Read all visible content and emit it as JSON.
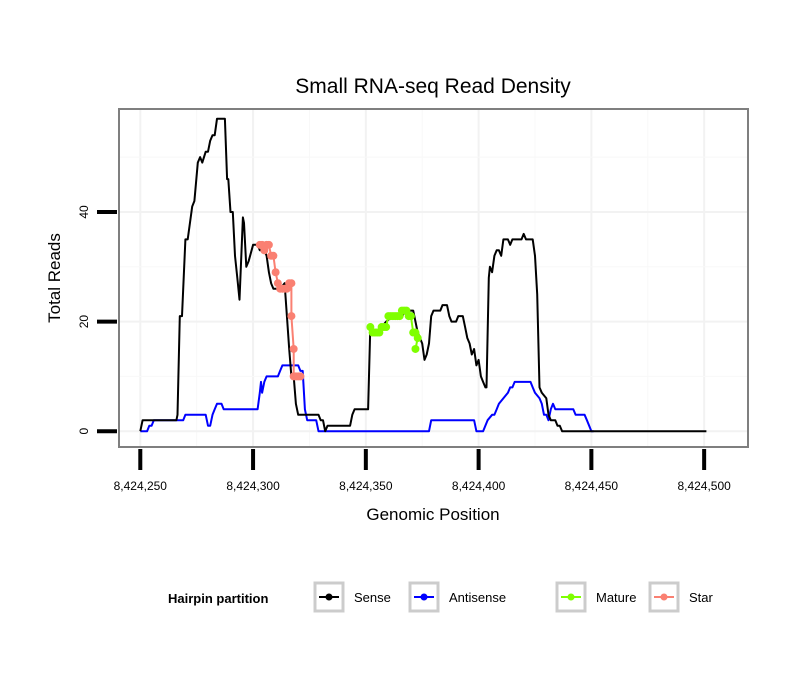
{
  "chart_data": {
    "type": "line",
    "title": "Small RNA-seq Read Density",
    "xlabel": "Genomic Position",
    "ylabel": "Total Reads",
    "xlim": [
      8424241,
      8424519
    ],
    "ylim": [
      -2.7,
      58.6
    ],
    "xticks": [
      8424250,
      8424300,
      8424350,
      8424400,
      8424450,
      8424500
    ],
    "xtick_labels": [
      "8,424,250",
      "8,424,300",
      "8,424,350",
      "8,424,400",
      "8,424,450",
      "8,424,500"
    ],
    "yticks": [
      0,
      20,
      40
    ],
    "ytick_labels": [
      "0",
      "20",
      "40"
    ],
    "grid": true,
    "legend": {
      "title": "Hairpin partition",
      "position": "bottom",
      "entries": [
        "Sense",
        "Antisense",
        "Mature",
        "Star"
      ]
    },
    "series": [
      {
        "name": "Sense",
        "color": "#000000",
        "markers": false,
        "points": [
          [
            8424250,
            0
          ],
          [
            8424251,
            2
          ],
          [
            8424266,
            2
          ],
          [
            8424266.5,
            3
          ],
          [
            8424267.5,
            21
          ],
          [
            8424268.5,
            21
          ],
          [
            8424270,
            35
          ],
          [
            8424271,
            35
          ],
          [
            8424273,
            41
          ],
          [
            8424274,
            42
          ],
          [
            8424275.5,
            49
          ],
          [
            8424276.5,
            50
          ],
          [
            8424277.5,
            49
          ],
          [
            8424279,
            51
          ],
          [
            8424280,
            51
          ],
          [
            8424281,
            53
          ],
          [
            8424282,
            54
          ],
          [
            8424283,
            54
          ],
          [
            8424284,
            57
          ],
          [
            8424287.5,
            57
          ],
          [
            8424288.5,
            46
          ],
          [
            8424289,
            46
          ],
          [
            8424290,
            40
          ],
          [
            8424291,
            40
          ],
          [
            8424292,
            32
          ],
          [
            8424293,
            28
          ],
          [
            8424294,
            24
          ],
          [
            8424295.5,
            39
          ],
          [
            8424296,
            38
          ],
          [
            8424297,
            30
          ],
          [
            8424298,
            31
          ],
          [
            8424300,
            34
          ],
          [
            8424302,
            34
          ],
          [
            8424303,
            33
          ],
          [
            8424305,
            33
          ],
          [
            8424306,
            32
          ],
          [
            8424307,
            29
          ],
          [
            8424308,
            27
          ],
          [
            8424309,
            26
          ],
          [
            8424312,
            26
          ],
          [
            8424314,
            27
          ],
          [
            8424315,
            21
          ],
          [
            8424316,
            15
          ],
          [
            8424317,
            10
          ],
          [
            8424318,
            10
          ],
          [
            8424319,
            5
          ],
          [
            8424320,
            3
          ],
          [
            8424329,
            3
          ],
          [
            8424330,
            2
          ],
          [
            8424331,
            2
          ],
          [
            8424332,
            0
          ],
          [
            8424333,
            1
          ],
          [
            8424343,
            1
          ],
          [
            8424344,
            3
          ],
          [
            8424345,
            4
          ],
          [
            8424351,
            4
          ],
          [
            8424352,
            19
          ],
          [
            8424353,
            18
          ],
          [
            8424356,
            18
          ],
          [
            8424357,
            19
          ],
          [
            8424359,
            20
          ],
          [
            8424362,
            21
          ],
          [
            8424366,
            21
          ],
          [
            8424368,
            22
          ],
          [
            8424371,
            22
          ],
          [
            8424373,
            18
          ],
          [
            8424375,
            16
          ],
          [
            8424376,
            13
          ],
          [
            8424377,
            14
          ],
          [
            8424378,
            16
          ],
          [
            8424379,
            21
          ],
          [
            8424380,
            22
          ],
          [
            8424383,
            22
          ],
          [
            8424384,
            23
          ],
          [
            8424386,
            23
          ],
          [
            8424387,
            21
          ],
          [
            8424388,
            20
          ],
          [
            8424390,
            20
          ],
          [
            8424391,
            21
          ],
          [
            8424393,
            21
          ],
          [
            8424394,
            19
          ],
          [
            8424395,
            17
          ],
          [
            8424396,
            16
          ],
          [
            8424397,
            14
          ],
          [
            8424398,
            15
          ],
          [
            8424399,
            12
          ],
          [
            8424400,
            13
          ],
          [
            8424401,
            10
          ],
          [
            8424402,
            9
          ],
          [
            8424403,
            8
          ],
          [
            8424403.5,
            8
          ],
          [
            8424404.5,
            28
          ],
          [
            8424405,
            30
          ],
          [
            8424406,
            29
          ],
          [
            8424407,
            32
          ],
          [
            8424408,
            33
          ],
          [
            8424409,
            33
          ],
          [
            8424410,
            32
          ],
          [
            8424411,
            35
          ],
          [
            8424413,
            35
          ],
          [
            8424414,
            34
          ],
          [
            8424415,
            35
          ],
          [
            8424419,
            35
          ],
          [
            8424420,
            36
          ],
          [
            8424421,
            35
          ],
          [
            8424424,
            35
          ],
          [
            8424425,
            32
          ],
          [
            8424426,
            25
          ],
          [
            8424427,
            8
          ],
          [
            8424428,
            7
          ],
          [
            8424430,
            6
          ],
          [
            8424431,
            3
          ],
          [
            8424432,
            2
          ],
          [
            8424434,
            2
          ],
          [
            8424435,
            1
          ],
          [
            8424436,
            1
          ],
          [
            8424437,
            0
          ],
          [
            8424501,
            0
          ]
        ]
      },
      {
        "name": "Antisense",
        "color": "#0000ff",
        "markers": false,
        "points": [
          [
            8424250,
            0
          ],
          [
            8424253,
            0
          ],
          [
            8424254,
            1
          ],
          [
            8424255,
            1
          ],
          [
            8424256,
            2
          ],
          [
            8424269,
            2
          ],
          [
            8424270,
            3
          ],
          [
            8424275,
            3
          ],
          [
            8424276,
            3
          ],
          [
            8424279,
            3
          ],
          [
            8424280,
            1
          ],
          [
            8424281,
            1
          ],
          [
            8424282,
            3
          ],
          [
            8424283,
            4
          ],
          [
            8424284,
            5
          ],
          [
            8424286,
            5
          ],
          [
            8424287,
            4
          ],
          [
            8424302,
            4
          ],
          [
            8424303,
            7
          ],
          [
            8424303.5,
            9
          ],
          [
            8424304,
            7
          ],
          [
            8424305,
            9
          ],
          [
            8424306,
            10
          ],
          [
            8424311,
            10
          ],
          [
            8424312,
            11
          ],
          [
            8424313,
            12
          ],
          [
            8424320,
            12
          ],
          [
            8424321,
            11
          ],
          [
            8424322,
            11
          ],
          [
            8424323,
            4
          ],
          [
            8424324,
            2
          ],
          [
            8424328,
            2
          ],
          [
            8424329,
            0
          ],
          [
            8424378,
            0
          ],
          [
            8424379,
            2
          ],
          [
            8424398,
            2
          ],
          [
            8424399,
            0
          ],
          [
            8424402,
            0
          ],
          [
            8424404,
            2
          ],
          [
            8424406,
            3
          ],
          [
            8424407,
            3
          ],
          [
            8424408,
            4
          ],
          [
            8424409,
            5
          ],
          [
            8424411,
            6
          ],
          [
            8424413,
            7
          ],
          [
            8424414,
            8
          ],
          [
            8424415,
            8
          ],
          [
            8424416,
            9
          ],
          [
            8424423,
            9
          ],
          [
            8424424,
            8
          ],
          [
            8424425,
            7
          ],
          [
            8424427,
            6
          ],
          [
            8424428,
            5
          ],
          [
            8424429,
            3
          ],
          [
            8424430,
            3
          ],
          [
            8424431,
            2
          ],
          [
            8424432,
            4
          ],
          [
            8424433,
            5
          ],
          [
            8424434,
            4
          ],
          [
            8424442,
            4
          ],
          [
            8424443,
            3
          ],
          [
            8424447,
            3
          ],
          [
            8424448,
            2
          ],
          [
            8424450,
            0
          ],
          [
            8424451,
            0
          ]
        ]
      },
      {
        "name": "Mature",
        "color": "#7fff00",
        "markers": true,
        "points": [
          [
            8424352,
            19
          ],
          [
            8424353,
            18
          ],
          [
            8424354,
            18
          ],
          [
            8424355,
            18
          ],
          [
            8424356,
            18
          ],
          [
            8424357,
            19
          ],
          [
            8424358,
            19
          ],
          [
            8424359,
            19
          ],
          [
            8424360,
            21
          ],
          [
            8424361,
            21
          ],
          [
            8424362,
            21
          ],
          [
            8424363,
            21
          ],
          [
            8424364,
            21
          ],
          [
            8424365,
            21
          ],
          [
            8424366,
            22
          ],
          [
            8424367,
            22
          ],
          [
            8424368,
            22
          ],
          [
            8424369,
            21
          ],
          [
            8424370,
            21
          ],
          [
            8424371,
            18
          ],
          [
            8424372,
            18
          ],
          [
            8424373,
            17
          ],
          [
            8424372,
            15
          ]
        ]
      },
      {
        "name": "Star",
        "color": "#fa8072",
        "markers": true,
        "points": [
          [
            8424303,
            34
          ],
          [
            8424304,
            34
          ],
          [
            8424305,
            33
          ],
          [
            8424306,
            34
          ],
          [
            8424307,
            34
          ],
          [
            8424308,
            32
          ],
          [
            8424309,
            32
          ],
          [
            8424310,
            29
          ],
          [
            8424311,
            27
          ],
          [
            8424312,
            26
          ],
          [
            8424313,
            26
          ],
          [
            8424314,
            26
          ],
          [
            8424315,
            26
          ],
          [
            8424316,
            27
          ],
          [
            8424317,
            27
          ],
          [
            8424317,
            21
          ],
          [
            8424318,
            15
          ],
          [
            8424318,
            10
          ],
          [
            8424319,
            10
          ],
          [
            8424320,
            10
          ],
          [
            8424321,
            10
          ]
        ]
      }
    ]
  }
}
